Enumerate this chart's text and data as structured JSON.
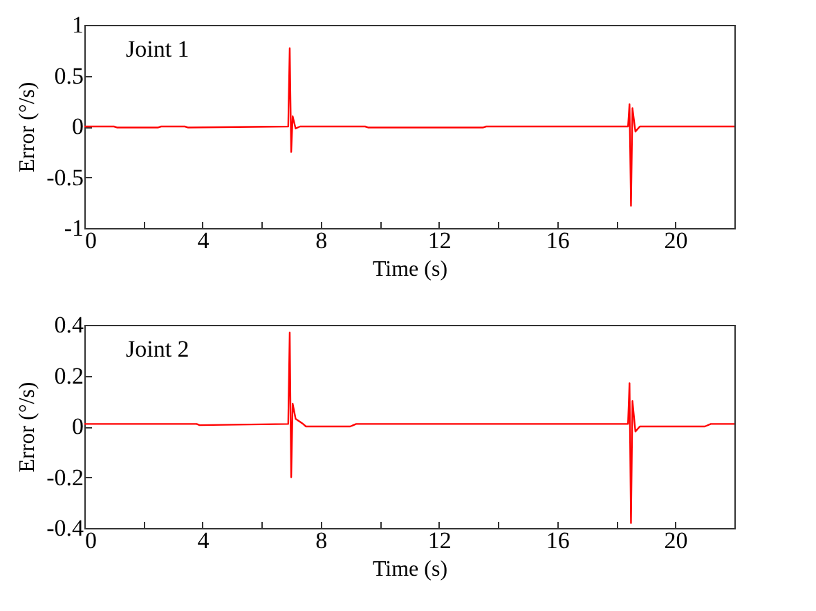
{
  "chart_data": [
    {
      "type": "line",
      "xlabel": "Time (s)",
      "ylabel": "Error (°/s)",
      "annotations": [
        "Joint 1"
      ],
      "xlim": [
        0,
        22
      ],
      "ylim": [
        -1,
        1
      ],
      "xticks": [
        0,
        {
          "value": 2,
          "label": null
        },
        4,
        {
          "value": 6,
          "label": null
        },
        8,
        {
          "value": 10,
          "label": null
        },
        12,
        {
          "value": 14,
          "label": null
        },
        16,
        {
          "value": 18,
          "label": null
        },
        20
      ],
      "yticks": [
        -1,
        -0.5,
        0,
        0.5,
        1
      ],
      "grid": false,
      "marker": "none",
      "line_style": "solid",
      "series": [
        {
          "color": "#ff0000",
          "x": [
            0,
            1,
            1.1,
            2.5,
            2.6,
            3.4,
            3.5,
            6.9,
            6.95,
            7.0,
            7.05,
            7.15,
            7.3,
            9.5,
            9.6,
            13.5,
            13.6,
            18.4,
            18.45,
            18.5,
            18.55,
            18.65,
            18.8,
            22
          ],
          "values": [
            0,
            0,
            -0.01,
            -0.01,
            0,
            0,
            -0.01,
            0,
            0.77,
            -0.25,
            0.1,
            -0.02,
            0,
            0,
            -0.01,
            -0.01,
            0,
            0,
            0.22,
            -0.78,
            0.18,
            -0.05,
            0,
            0
          ]
        }
      ]
    },
    {
      "type": "line",
      "xlabel": "Time (s)",
      "ylabel": "Error (°/s)",
      "annotations": [
        "Joint 2"
      ],
      "xlim": [
        0,
        22
      ],
      "ylim": [
        -0.4,
        0.4
      ],
      "xticks": [
        0,
        {
          "value": 2,
          "label": null
        },
        4,
        {
          "value": 6,
          "label": null
        },
        8,
        {
          "value": 10,
          "label": null
        },
        12,
        {
          "value": 14,
          "label": null
        },
        16,
        {
          "value": 18,
          "label": null
        },
        20
      ],
      "yticks": [
        -0.4,
        -0.2,
        0,
        0.2,
        0.4
      ],
      "grid": false,
      "marker": "none",
      "line_style": "solid",
      "series": [
        {
          "color": "#ff0000",
          "x": [
            0,
            3.8,
            3.9,
            6.9,
            6.95,
            7.0,
            7.05,
            7.15,
            7.4,
            7.5,
            9,
            9.2,
            18.4,
            18.45,
            18.5,
            18.55,
            18.65,
            18.8,
            21,
            21.2,
            22
          ],
          "values": [
            0.01,
            0.01,
            0.005,
            0.01,
            0.37,
            -0.2,
            0.09,
            0.03,
            0.01,
            0,
            0,
            0.01,
            0.01,
            0.17,
            -0.38,
            0.1,
            -0.02,
            0,
            0,
            0.01,
            0.01
          ]
        }
      ]
    }
  ]
}
